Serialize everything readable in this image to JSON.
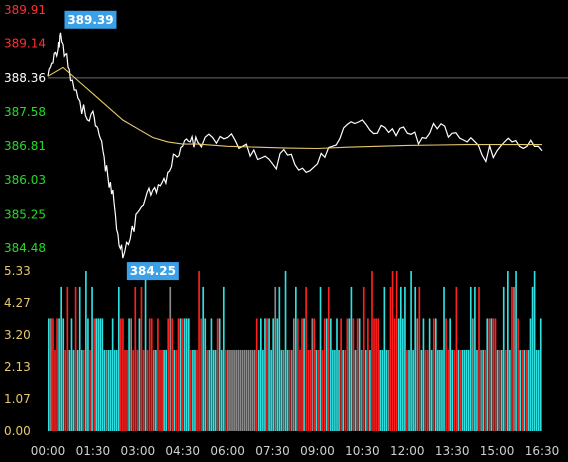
{
  "chart_data": [
    {
      "type": "line",
      "panel": "price",
      "y_ticks": [
        "389.91",
        "389.14",
        "388.36",
        "387.58",
        "386.81",
        "386.03",
        "385.25",
        "384.48"
      ],
      "y_tick_colors": [
        "#ff3030",
        "#ff3030",
        "#ffffff",
        "#22dd22",
        "#22dd22",
        "#22dd22",
        "#22dd22",
        "#22dd22"
      ],
      "ylim": [
        384.48,
        389.91
      ],
      "reference_price": 388.36,
      "high": {
        "label": "389.39",
        "value": 389.39,
        "time": "00:25"
      },
      "low": {
        "label": "384.25",
        "value": 384.25,
        "time": "02:30"
      },
      "series": [
        {
          "color": "#ffffff",
          "x": [
            "00:00",
            "00:10",
            "00:20",
            "00:25",
            "00:35",
            "00:45",
            "01:00",
            "01:15",
            "01:30",
            "01:40",
            "01:50",
            "02:00",
            "02:10",
            "02:20",
            "02:30",
            "02:45",
            "03:00",
            "03:15",
            "03:30",
            "03:45",
            "04:00",
            "04:15",
            "04:30",
            "04:45",
            "05:00",
            "05:30",
            "06:00",
            "06:30",
            "07:00",
            "07:30",
            "08:00",
            "08:30",
            "09:00",
            "09:30",
            "10:00",
            "10:30",
            "11:00",
            "11:30",
            "12:00",
            "12:30",
            "13:00",
            "13:30",
            "14:00",
            "14:30",
            "15:00",
            "15:30",
            "16:00",
            "16:30"
          ],
          "values": [
            388.4,
            388.7,
            389.0,
            389.39,
            388.9,
            388.3,
            387.9,
            387.5,
            387.6,
            387.2,
            386.7,
            386.1,
            385.8,
            384.8,
            384.25,
            384.7,
            385.3,
            385.6,
            385.8,
            385.9,
            386.2,
            386.6,
            386.8,
            386.9,
            386.9,
            387.0,
            387.0,
            386.8,
            386.5,
            386.4,
            386.6,
            386.3,
            386.4,
            386.8,
            387.3,
            387.4,
            387.1,
            387.2,
            387.1,
            387.0,
            387.2,
            387.1,
            386.9,
            386.6,
            386.7,
            386.9,
            386.8,
            386.7
          ]
        },
        {
          "color": "#e6c86e",
          "x": [
            "00:00",
            "00:30",
            "01:00",
            "01:30",
            "02:00",
            "02:30",
            "03:00",
            "03:30",
            "04:00",
            "04:30",
            "05:00",
            "06:00",
            "07:00",
            "08:00",
            "09:00",
            "10:00",
            "11:00",
            "12:00",
            "13:00",
            "14:00",
            "15:00",
            "16:00",
            "16:30"
          ],
          "values": [
            388.4,
            388.6,
            388.3,
            388.0,
            387.7,
            387.4,
            387.2,
            387.0,
            386.9,
            386.85,
            386.85,
            386.8,
            386.78,
            386.76,
            386.75,
            386.78,
            386.8,
            386.82,
            386.83,
            386.84,
            386.84,
            386.84,
            386.84
          ]
        }
      ]
    },
    {
      "type": "bar",
      "panel": "volume",
      "y_ticks": [
        "5.33",
        "4.27",
        "3.20",
        "2.13",
        "1.07",
        "0.00"
      ],
      "ylim": [
        0,
        5.33
      ],
      "x_ticks": [
        "00:00",
        "01:30",
        "03:00",
        "04:30",
        "06:00",
        "07:30",
        "09:00",
        "10:30",
        "12:00",
        "13:30",
        "15:00",
        "16:30"
      ],
      "x_range": [
        "00:00",
        "16:30"
      ],
      "bar_count": 240,
      "colors": {
        "up": "#ff2020",
        "down": "#30e0e0",
        "flat": "#8a8a8a"
      }
    }
  ]
}
